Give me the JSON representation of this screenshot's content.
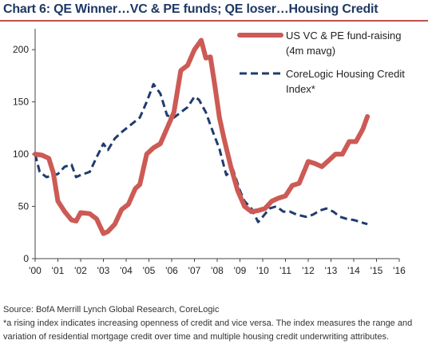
{
  "title": "Chart 6: QE Winner…VC & PE funds; QE loser…Housing Credit",
  "source_line": "Source: BofA Merrill Lynch Global Research, CoreLogic",
  "footnote": "*a rising index indicates increasing openness of credit and vice versa. The index measures the range and variation of residential mortgage credit over time and multiple housing credit underwriting attributes.",
  "colors": {
    "vc_pe": "#cd5a55",
    "corelogic": "#1f3c6e",
    "title": "#1f3864",
    "rule": "#c0504d"
  },
  "chart_data": {
    "type": "line",
    "x_ticks": [
      "'00",
      "'01",
      "'02",
      "'03",
      "'04",
      "'05",
      "'06",
      "'07",
      "'08",
      "'09",
      "'10",
      "'11",
      "'12",
      "'13",
      "'14",
      "'15",
      "'16"
    ],
    "xlim": [
      2000,
      2016
    ],
    "ylim": [
      0,
      220
    ],
    "y_ticks": [
      0,
      50,
      100,
      150,
      200
    ],
    "grid": false,
    "legend_position": "top-right",
    "series": [
      {
        "name": "US VC & PE fund-raising (4m mavg)",
        "legend_lines": [
          "US VC & PE fund-raising",
          "(4m mavg)"
        ],
        "style": "solid",
        "x": [
          2000.0,
          2000.3,
          2000.6,
          2000.8,
          2001.0,
          2001.3,
          2001.6,
          2001.8,
          2002.0,
          2002.4,
          2002.7,
          2003.0,
          2003.2,
          2003.5,
          2003.8,
          2004.1,
          2004.4,
          2004.6,
          2004.9,
          2005.2,
          2005.5,
          2005.8,
          2006.1,
          2006.4,
          2006.7,
          2007.0,
          2007.3,
          2007.5,
          2007.7,
          2007.9,
          2008.1,
          2008.3,
          2008.6,
          2008.9,
          2009.2,
          2009.5,
          2009.8,
          2010.1,
          2010.4,
          2010.7,
          2011.0,
          2011.3,
          2011.6,
          2012.0,
          2012.3,
          2012.6,
          2012.9,
          2013.2,
          2013.5,
          2013.8,
          2014.1,
          2014.4,
          2014.6
        ],
        "y": [
          100,
          99,
          96,
          82,
          55,
          45,
          37,
          36,
          44,
          43,
          38,
          24,
          26,
          33,
          47,
          52,
          67,
          71,
          100,
          106,
          110,
          125,
          140,
          180,
          185,
          200,
          209,
          192,
          193,
          165,
          135,
          115,
          88,
          65,
          50,
          45,
          46,
          48,
          55,
          58,
          60,
          70,
          72,
          93,
          91,
          88,
          94,
          100,
          100,
          112,
          112,
          124,
          136
        ]
      },
      {
        "name": "CoreLogic Housing Credit Index*",
        "legend_lines": [
          "CoreLogic Housing Credit",
          "Index*"
        ],
        "style": "dashed",
        "x": [
          2000.0,
          2000.2,
          2000.5,
          2000.8,
          2001.0,
          2001.3,
          2001.6,
          2001.8,
          2002.0,
          2002.4,
          2002.7,
          2003.0,
          2003.2,
          2003.5,
          2003.8,
          2004.2,
          2004.6,
          2004.9,
          2005.2,
          2005.5,
          2005.8,
          2006.1,
          2006.4,
          2006.7,
          2007.0,
          2007.2,
          2007.5,
          2007.8,
          2008.1,
          2008.4,
          2008.7,
          2009.0,
          2009.2,
          2009.5,
          2009.8,
          2010.0,
          2010.3,
          2010.6,
          2010.9,
          2011.2,
          2011.5,
          2011.9,
          2012.2,
          2012.5,
          2012.8,
          2013.1,
          2013.4,
          2013.7,
          2014.0,
          2014.3,
          2014.6
        ],
        "y": [
          100,
          83,
          78,
          80,
          81,
          88,
          90,
          78,
          80,
          83,
          97,
          110,
          104,
          115,
          121,
          128,
          135,
          150,
          167,
          158,
          137,
          135,
          140,
          145,
          155,
          152,
          140,
          122,
          105,
          80,
          85,
          65,
          55,
          48,
          35,
          40,
          48,
          50,
          45,
          45,
          42,
          40,
          42,
          46,
          48,
          45,
          40,
          38,
          37,
          35,
          33
        ]
      }
    ]
  }
}
